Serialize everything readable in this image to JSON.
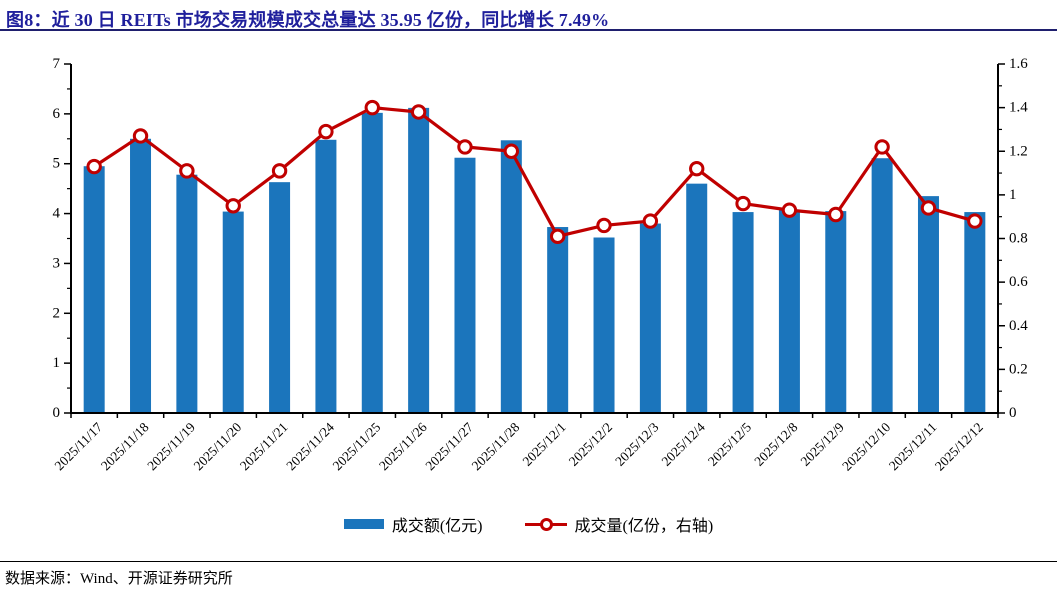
{
  "header": {
    "figure_label": "图8："
  },
  "footer": {
    "source": "数据来源：Wind、开源证券研究所"
  },
  "colors": {
    "bar": "#1B75BC",
    "line": "#C00000",
    "marker_fill": "#FFFFFF",
    "axis": "#000000",
    "title": "#1F1F9C",
    "title_rule": "#1F1F6E",
    "footer_rule": "#000000"
  },
  "chart_data": {
    "type": "bar",
    "title": "图8：近 30 日 REITs 市场交易规模成交总量达 35.95 亿份，同比增长 7.49%",
    "categories": [
      "2025/11/17",
      "2025/11/18",
      "2025/11/19",
      "2025/11/20",
      "2025/11/21",
      "2025/11/24",
      "2025/11/25",
      "2025/11/26",
      "2025/11/27",
      "2025/11/28",
      "2025/12/1",
      "2025/12/2",
      "2025/12/3",
      "2025/12/4",
      "2025/12/5",
      "2025/12/8",
      "2025/12/9",
      "2025/12/10",
      "2025/12/11",
      "2025/12/12"
    ],
    "series": [
      {
        "name": "成交额(亿元)",
        "type": "bar",
        "axis": "left",
        "values": [
          4.95,
          5.5,
          4.78,
          4.04,
          4.63,
          5.48,
          6.02,
          6.12,
          5.12,
          5.47,
          3.73,
          3.52,
          3.8,
          4.6,
          4.03,
          4.07,
          4.05,
          5.11,
          4.35,
          4.03
        ]
      },
      {
        "name": "成交量(亿份，右轴)",
        "type": "line",
        "axis": "right",
        "values": [
          1.13,
          1.27,
          1.11,
          0.95,
          1.11,
          1.29,
          1.4,
          1.38,
          1.22,
          1.2,
          0.81,
          0.86,
          0.88,
          1.12,
          0.96,
          0.93,
          0.91,
          1.22,
          0.94,
          0.88
        ]
      }
    ],
    "left_axis": {
      "min": 0,
      "max": 7,
      "ticks": [
        0,
        1,
        2,
        3,
        4,
        5,
        6,
        7
      ],
      "tick_labels": [
        "0",
        "1",
        "2",
        "3",
        "4",
        "5",
        "6",
        "7"
      ],
      "minor_step": 0.5
    },
    "right_axis": {
      "min": 0,
      "max": 1.6,
      "ticks": [
        0,
        0.2,
        0.4,
        0.6,
        0.8,
        1,
        1.2,
        1.4,
        1.6
      ],
      "tick_labels": [
        "0",
        "0.2",
        "0.4",
        "0.6",
        "0.8",
        "1",
        "1.2",
        "1.4",
        "1.6"
      ],
      "minor_step": 0.1
    },
    "grid": false,
    "legend_position": "bottom"
  }
}
